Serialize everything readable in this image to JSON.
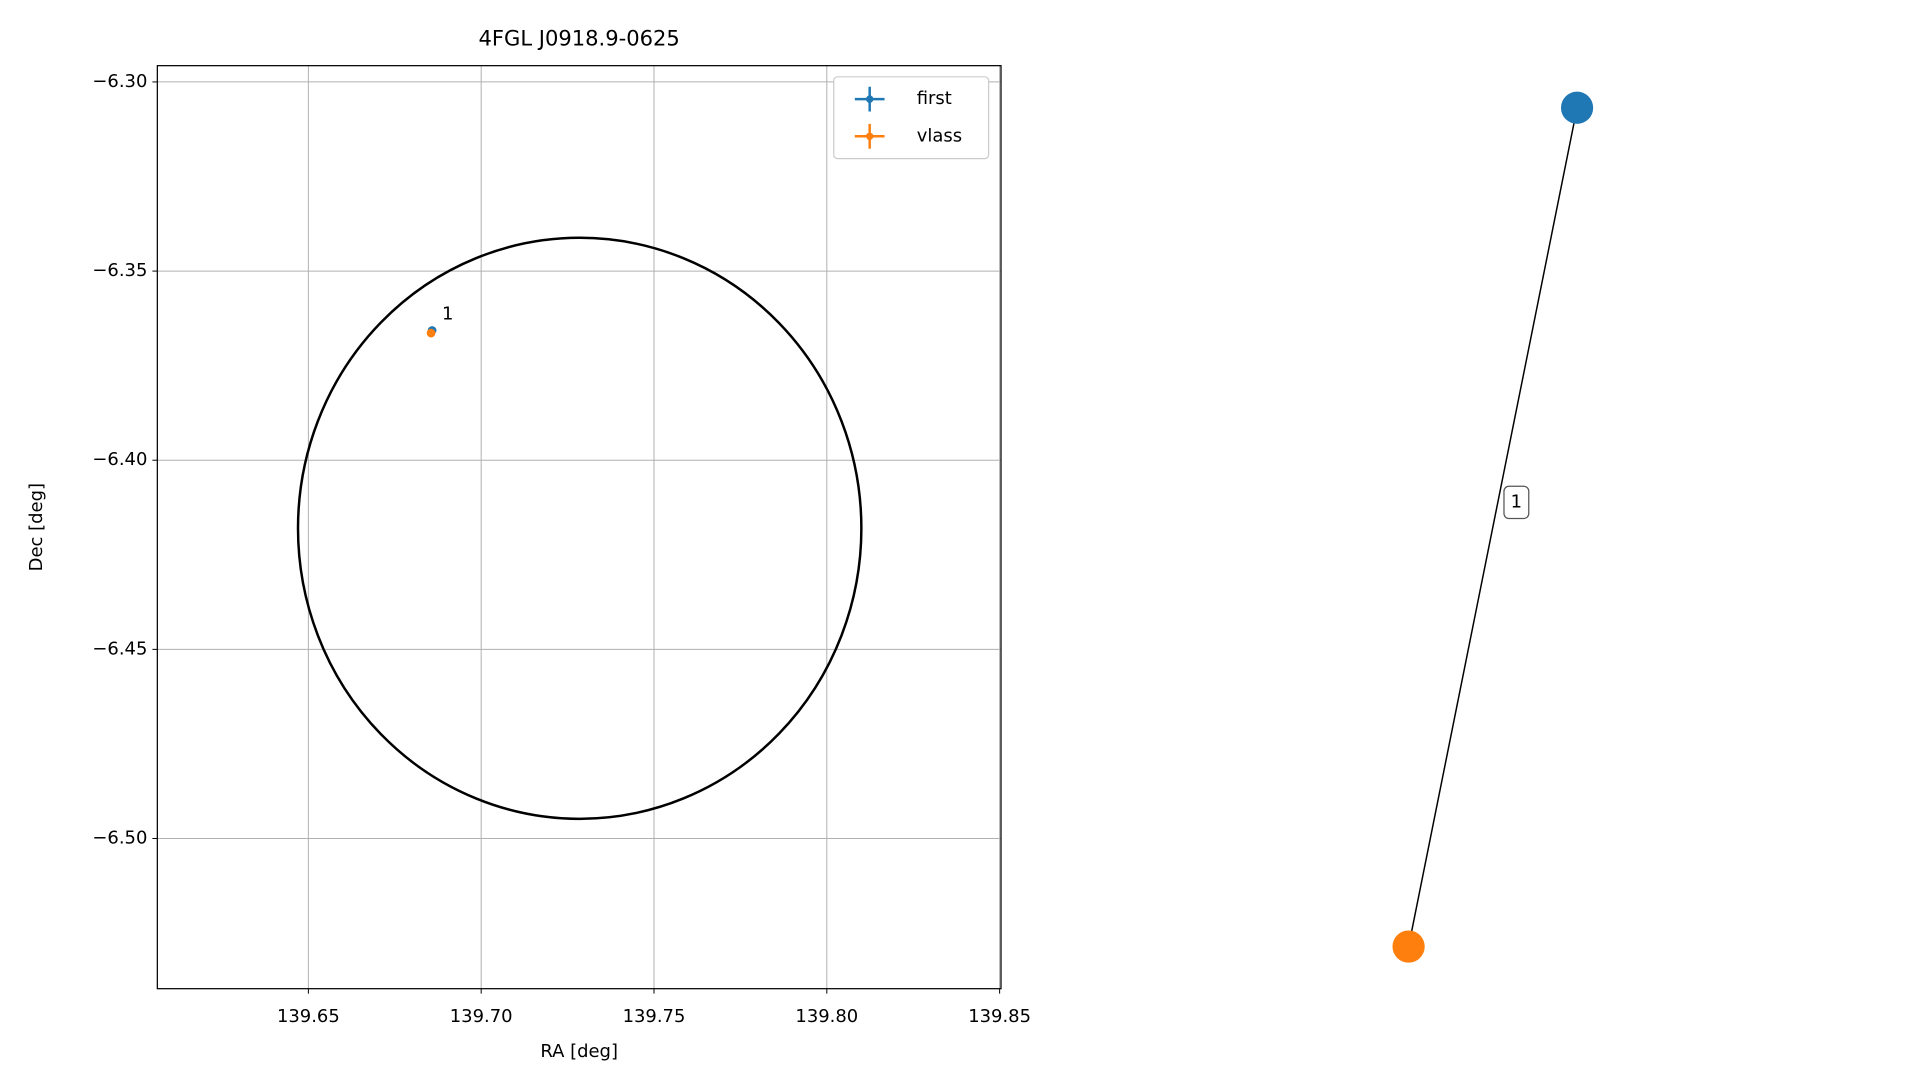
{
  "chart_data": [
    {
      "type": "scatter",
      "title": "4FGL J0918.9-0625",
      "xlabel": "RA [deg]",
      "ylabel": "Dec [deg]",
      "xlim": [
        139.6063,
        139.8504
      ],
      "ylim": [
        -6.5397,
        -6.2957
      ],
      "xticks": [
        139.65,
        {
          "value": 139.7,
          "label": "139.70"
        },
        139.75,
        {
          "value": 139.8,
          "label": "139.80"
        },
        139.85
      ],
      "yticks": [
        {
          "value": -6.3,
          "label": "−6.30"
        },
        {
          "value": -6.35,
          "label": "−6.35"
        },
        {
          "value": -6.4,
          "label": "−6.40"
        },
        {
          "value": -6.45,
          "label": "−6.45"
        },
        {
          "value": -6.5,
          "label": "−6.50"
        }
      ],
      "grid": true,
      "legend": "upper right",
      "series": [
        {
          "name": "first",
          "color": "#1f77b4",
          "x": [
            139.6858
          ],
          "values": [
            -6.3657
          ]
        },
        {
          "name": "vlass",
          "color": "#ff7f0e",
          "x": [
            139.6855
          ],
          "values": [
            -6.3664
          ]
        }
      ],
      "circle": {
        "center": [
          139.7285,
          -6.418
        ],
        "radius": [
          0.0815,
          0.0768
        ],
        "color": "#000000"
      },
      "annotations": [
        {
          "text": "1",
          "x": 139.6858,
          "y": -6.3657
        }
      ]
    },
    {
      "type": "graph",
      "nodes": [
        {
          "color": "#1f77b4"
        },
        {
          "color": "#ff7f0e"
        }
      ],
      "edges": [
        {
          "source": 0,
          "target": 1,
          "label": "1"
        }
      ]
    }
  ]
}
